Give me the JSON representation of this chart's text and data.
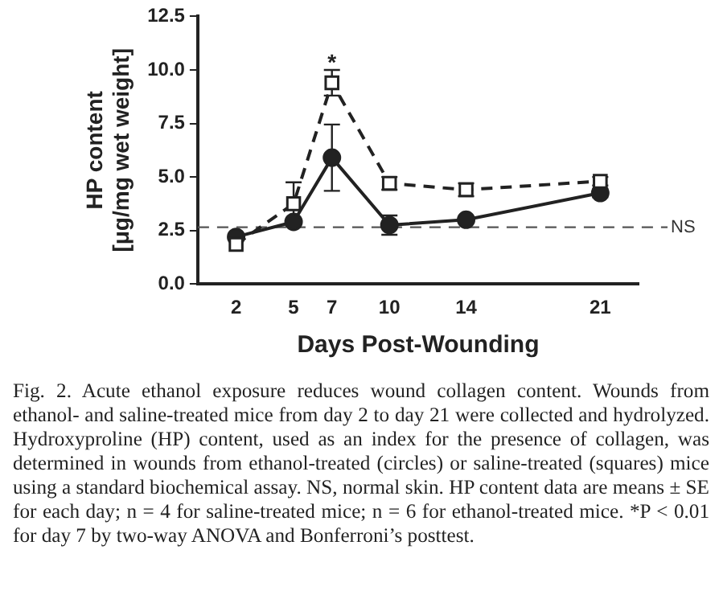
{
  "chart_data": {
    "type": "line",
    "xlabel": "Days Post-Wounding",
    "ylabel": "HP content\n[μg/mg wet weight]",
    "x": [
      2,
      5,
      7,
      10,
      14,
      21
    ],
    "xlim": [
      0,
      23
    ],
    "xticks": [
      2,
      5,
      7,
      10,
      14,
      21
    ],
    "ylim": [
      0,
      12.5
    ],
    "yticks": [
      {
        "value": 0,
        "label": "0.0"
      },
      {
        "value": 2.5,
        "label": "2.5"
      },
      {
        "value": 5,
        "label": "5.0"
      },
      {
        "value": 7.5,
        "label": "7.5"
      },
      {
        "value": 10,
        "label": "10.0"
      },
      {
        "value": 12.5,
        "label": "12.5"
      }
    ],
    "series": [
      {
        "color": "#222222",
        "marker": "circle",
        "line_style": "solid",
        "values": [
          2.2,
          2.9,
          5.9,
          2.75,
          3.0,
          4.25
        ],
        "errors": [
          null,
          null,
          1.55,
          0.45,
          null,
          0.2
        ]
      },
      {
        "color": "#222222",
        "marker": "square",
        "line_style": "dashed",
        "values": [
          1.85,
          3.75,
          9.4,
          4.7,
          4.4,
          4.8
        ],
        "errors": [
          null,
          1.0,
          0.6,
          0.3,
          0.3,
          0.2
        ]
      }
    ],
    "ref_lines": [
      {
        "axis": "y",
        "value": 2.65,
        "label": "NS",
        "line_style": "dashed",
        "color": "#555555"
      }
    ],
    "annotations": [
      {
        "text": "*",
        "x": 7,
        "y": 10.3
      },
      "Fig. 2.  Acute ethanol exposure reduces wound collagen content. Wounds from ethanol- and saline-treated mice from day 2 to day 21 were collected and hydrolyzed. Hydroxyproline (HP) content, used as an index for the presence of collagen, was determined in wounds from ethanol-treated (circles) or saline-treated (squares) mice using a standard biochemical assay. NS, normal skin. HP content data are means ± SE for each day; n = 4 for saline-treated mice; n = 6 for ethanol-treated mice. *P < 0.01 for day 7 by two-way ANOVA and Bonferroni’s posttest."
    ],
    "grid": false,
    "legend": false
  }
}
